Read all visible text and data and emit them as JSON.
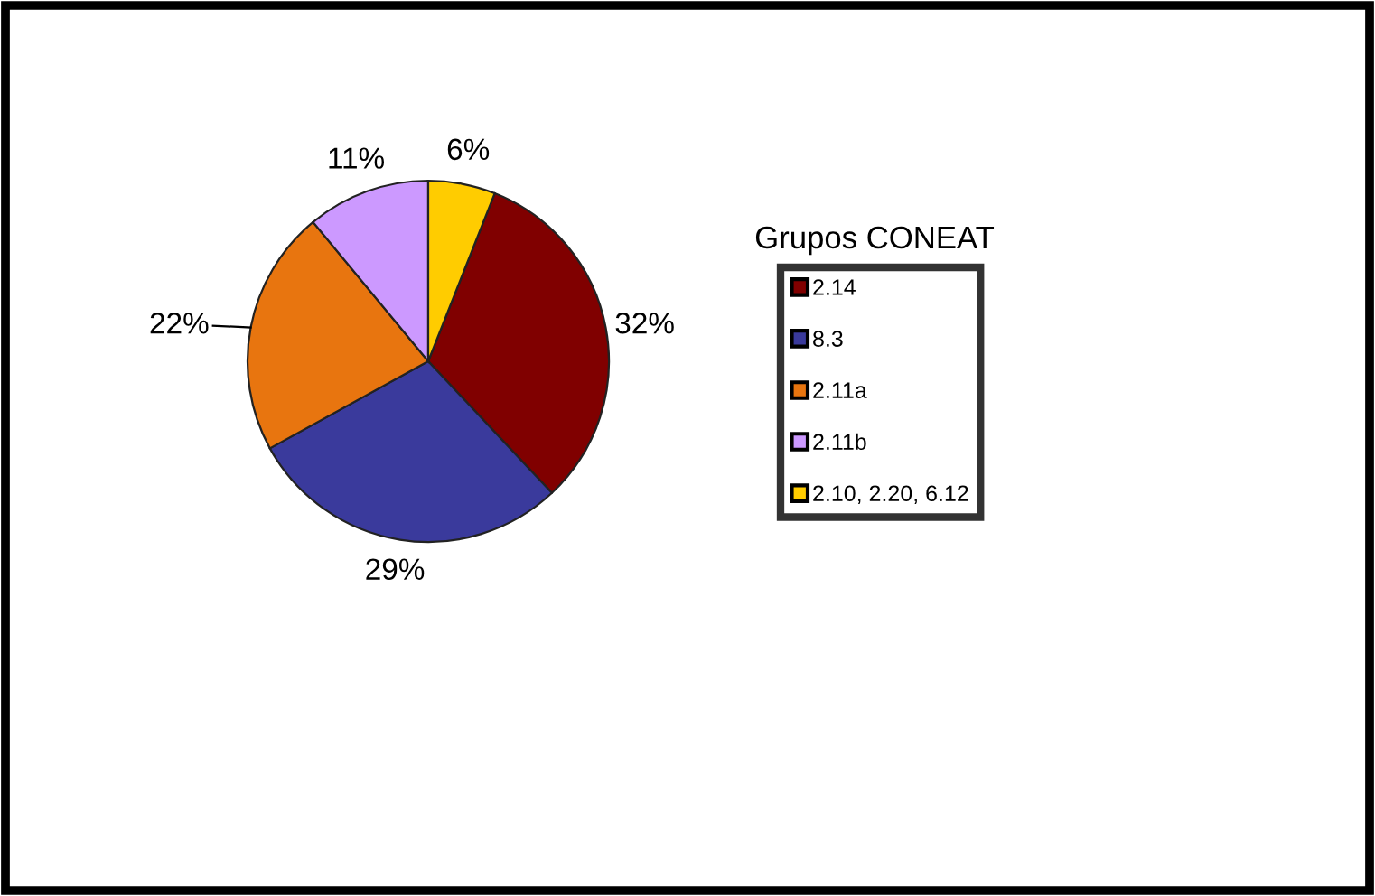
{
  "chart_data": {
    "type": "pie",
    "legend_title": "Grupos CONEAT",
    "categories": [
      "2.14",
      "8.3",
      "2.11a",
      "2.11b",
      "2.10, 2.20, 6.12"
    ],
    "values": [
      32,
      29,
      22,
      11,
      6
    ],
    "colors": [
      "#800000",
      "#3a3a9c",
      "#e8750f",
      "#cc99ff",
      "#ffcc00"
    ],
    "value_labels": [
      "32%",
      "29%",
      "22%",
      "11%",
      "6%"
    ],
    "legend": "right"
  }
}
